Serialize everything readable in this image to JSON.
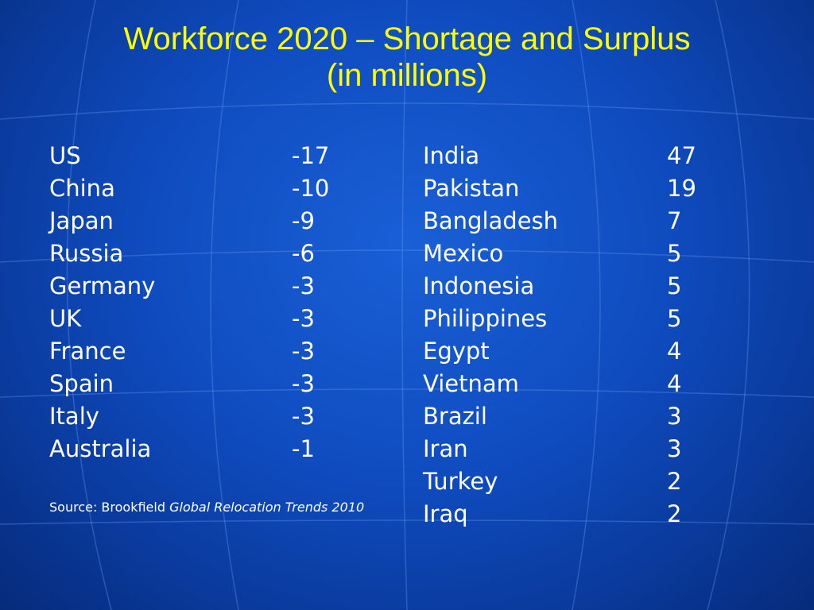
{
  "slide": {
    "title_line1": "Workforce 2020 – Shortage and Surplus",
    "title_line2": "(in millions)",
    "shortage": [
      {
        "country": "US",
        "value": "-17"
      },
      {
        "country": "China",
        "value": "-10"
      },
      {
        "country": "Japan",
        "value": "-9"
      },
      {
        "country": "Russia",
        "value": "-6"
      },
      {
        "country": "Germany",
        "value": "-3"
      },
      {
        "country": "UK",
        "value": "-3"
      },
      {
        "country": "France",
        "value": "-3"
      },
      {
        "country": "Spain",
        "value": "-3"
      },
      {
        "country": "Italy",
        "value": "-3"
      },
      {
        "country": "Australia",
        "value": "-1"
      }
    ],
    "surplus": [
      {
        "country": "India",
        "value": "47"
      },
      {
        "country": "Pakistan",
        "value": "19"
      },
      {
        "country": "Bangladesh",
        "value": "7"
      },
      {
        "country": "Mexico",
        "value": "5"
      },
      {
        "country": "Indonesia",
        "value": "5"
      },
      {
        "country": "Philippines",
        "value": "5"
      },
      {
        "country": "Egypt",
        "value": "4"
      },
      {
        "country": "Vietnam",
        "value": "4"
      },
      {
        "country": "Brazil",
        "value": "3"
      },
      {
        "country": "Iran",
        "value": "3"
      },
      {
        "country": "Turkey",
        "value": "2"
      },
      {
        "country": "Iraq",
        "value": "2"
      }
    ],
    "source_prefix": "Source: Brookfield ",
    "source_title": "Global Relocation Trends 2010"
  },
  "colors": {
    "title": "#ffff00",
    "text": "#ffffff",
    "background": "#0f4cc0"
  }
}
